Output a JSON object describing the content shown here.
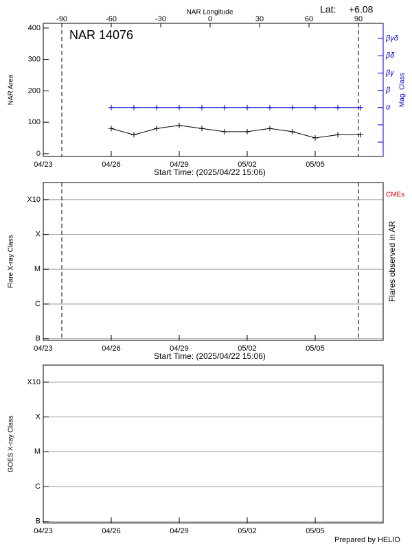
{
  "chart_data": [
    {
      "type": "line",
      "title": "NAR 14076",
      "lat_label": "Lat:",
      "lat_value": "+6.08",
      "x_label": "Start Time: (2025/04/22 15:06)",
      "y_label": "NAR Area",
      "y2_label": "Mag. Class",
      "x2_label": "NAR Longitude",
      "x": [
        "04/26",
        "04/27",
        "04/28",
        "04/29",
        "04/30",
        "05/01",
        "05/02",
        "05/03",
        "05/04",
        "05/05",
        "05/06",
        "05/07"
      ],
      "xlim": [
        "04/23",
        "05/08"
      ],
      "xticks": [
        "04/23",
        "04/26",
        "04/29",
        "05/02",
        "05/05"
      ],
      "x2lim": [
        -101.25,
        105
      ],
      "x2ticks": [
        -90,
        -60,
        -30,
        0,
        30,
        60,
        90
      ],
      "limb_longitudes": [
        -90,
        90
      ],
      "ylim": [
        -9,
        415
      ],
      "yticks": [
        0,
        100,
        200,
        300,
        400
      ],
      "y2lim": [
        -1.83,
        5.875
      ],
      "y2ticks": [
        {
          "value": 1,
          "label": "α"
        },
        {
          "value": 2,
          "label": "β"
        },
        {
          "value": 3,
          "label": "βγ"
        },
        {
          "value": 4,
          "label": "βδ"
        },
        {
          "value": 5,
          "label": "βγδ"
        }
      ],
      "y2minor_ticks": [
        -1,
        0
      ],
      "y2_color": "#0000cc",
      "series": [
        {
          "color": "#000000",
          "values": [
            80,
            60,
            80,
            90,
            80,
            70,
            70,
            80,
            70,
            50,
            60,
            60
          ]
        },
        {
          "color": "#0000cc",
          "axis": "y2",
          "values": [
            1,
            1,
            1,
            1,
            1,
            1,
            1,
            1,
            1,
            1,
            1,
            1
          ]
        }
      ],
      "grid": false
    },
    {
      "type": "line",
      "x_label": "Start Time: (2025/04/22 15:06)",
      "y_label": "Flare X-ray Class",
      "y2_label": "Flares observed in AR",
      "annotation": "CMEs",
      "annotation_color": "#dd0000",
      "xlim": [
        "04/23",
        "05/08"
      ],
      "xticks": [
        "04/23",
        "04/26",
        "04/29",
        "05/02",
        "05/05"
      ],
      "x2lim": [
        -101.25,
        105
      ],
      "limb_longitudes": [
        -90,
        90
      ],
      "log_scale": true,
      "ylim": [
        9e-08,
        0.0031
      ],
      "yticks": [
        {
          "value": 1e-07,
          "label": "B"
        },
        {
          "value": 1e-06,
          "label": "C"
        },
        {
          "value": 1e-05,
          "label": "M"
        },
        {
          "value": 0.0001,
          "label": "X"
        },
        {
          "value": 0.001,
          "label": "X10"
        }
      ],
      "grid": true
    },
    {
      "type": "line",
      "y_label": "GOES X-ray Class",
      "xlim": [
        "04/23",
        "05/08"
      ],
      "xticks": [
        "04/23",
        "04/26",
        "04/29",
        "05/02",
        "05/05"
      ],
      "log_scale": true,
      "ylim": [
        9e-08,
        0.0031
      ],
      "yticks": [
        {
          "value": 1e-07,
          "label": "B"
        },
        {
          "value": 1e-06,
          "label": "C"
        },
        {
          "value": 1e-05,
          "label": "M"
        },
        {
          "value": 0.0001,
          "label": "X"
        },
        {
          "value": 0.001,
          "label": "X10"
        }
      ],
      "grid": true
    }
  ],
  "footer": "Prepared by HELIO"
}
